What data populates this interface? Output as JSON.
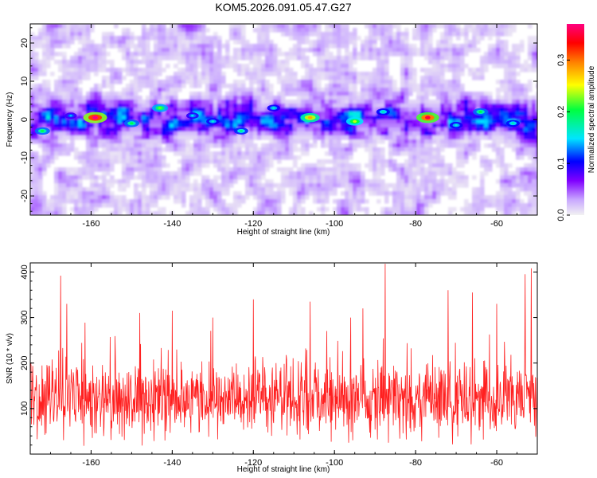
{
  "title": "KOM5.2026.091.05.47.G27",
  "chart_data": [
    {
      "type": "heatmap",
      "title": "KOM5.2026.091.05.47.G27",
      "xlabel": "Height of straight line (km)",
      "ylabel": "Frequency (Hz)",
      "xlim": [
        -175,
        -50
      ],
      "ylim": [
        -25,
        25
      ],
      "x_ticks": [
        -160,
        -140,
        -120,
        -100,
        -80,
        -60
      ],
      "y_ticks": [
        20,
        10,
        0,
        -10,
        -20
      ],
      "colorbar": {
        "label": "Normalized spectral amplitude",
        "range": [
          0.0,
          0.37
        ],
        "ticks": [
          0.0,
          0.1,
          0.2,
          0.3
        ],
        "colormap": [
          "#f2f2f2",
          "#c9a8ff",
          "#8000ff",
          "#0000ff",
          "#00e5ff",
          "#00ff40",
          "#ffff00",
          "#ff8000",
          "#ff0000",
          "#ff0080"
        ]
      },
      "band_center_hz": 0,
      "band_halfwidth_hz": 4,
      "peaks": [
        {
          "x": -159,
          "y": 0.5,
          "value": 0.37
        },
        {
          "x": -77,
          "y": 0.5,
          "value": 0.35
        },
        {
          "x": -106,
          "y": 0.5,
          "value": 0.28
        },
        {
          "x": -95,
          "y": -0.5,
          "value": 0.24
        },
        {
          "x": -143,
          "y": 3,
          "value": 0.22
        },
        {
          "x": -150,
          "y": -1,
          "value": 0.2
        },
        {
          "x": -172,
          "y": -3,
          "value": 0.2
        },
        {
          "x": -123,
          "y": -3,
          "value": 0.18
        },
        {
          "x": -64,
          "y": 2,
          "value": 0.2
        },
        {
          "x": -56,
          "y": -1,
          "value": 0.17
        },
        {
          "x": -130,
          "y": -0.5,
          "value": 0.16
        },
        {
          "x": -88,
          "y": 2,
          "value": 0.17
        },
        {
          "x": -115,
          "y": 3,
          "value": 0.16
        },
        {
          "x": -70,
          "y": -1.5,
          "value": 0.16
        },
        {
          "x": -135,
          "y": 1,
          "value": 0.15
        },
        {
          "x": -165,
          "y": 1,
          "value": 0.14
        }
      ]
    },
    {
      "type": "line",
      "xlabel": "Height of straight line (km)",
      "ylabel": "SNR (10 * v/v)",
      "xlim": [
        -175,
        -50
      ],
      "ylim": [
        0,
        420
      ],
      "x_ticks": [
        -160,
        -140,
        -120,
        -100,
        -80,
        -60
      ],
      "y_ticks": [
        100,
        200,
        300,
        400
      ],
      "color": "#ff2020",
      "series": [
        {
          "sample_spacing_km": 0.1,
          "mean": 120,
          "typical_range": [
            20,
            240
          ],
          "peaks": [
            {
              "x": -167.5,
              "y": 392
            },
            {
              "x": -87.5,
              "y": 418
            },
            {
              "x": -51.5,
              "y": 408
            },
            {
              "x": -53.0,
              "y": 395
            },
            {
              "x": -72.0,
              "y": 360
            },
            {
              "x": -66.0,
              "y": 355
            },
            {
              "x": -120.0,
              "y": 340
            },
            {
              "x": -106.0,
              "y": 335
            },
            {
              "x": -166.0,
              "y": 330
            },
            {
              "x": -140.0,
              "y": 315
            },
            {
              "x": -93.0,
              "y": 320
            },
            {
              "x": -60.0,
              "y": 330
            },
            {
              "x": -130.0,
              "y": 300
            },
            {
              "x": -148.0,
              "y": 310
            }
          ]
        }
      ]
    }
  ]
}
